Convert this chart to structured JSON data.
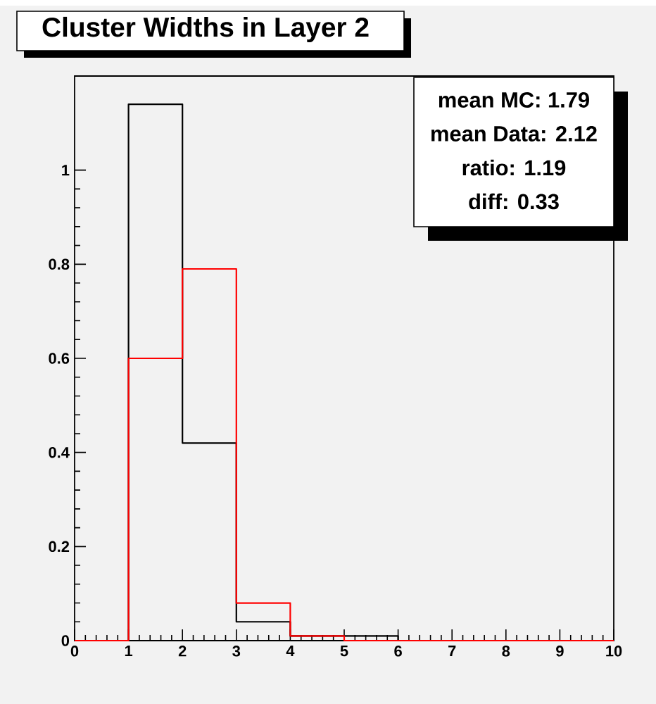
{
  "chart_data": {
    "type": "histogram",
    "title": "Cluster Widths in Layer 2",
    "bins": [
      0,
      1,
      2,
      3,
      4,
      5,
      6,
      7,
      8,
      9,
      10
    ],
    "series": [
      {
        "color": "#000000",
        "values": [
          0,
          1.14,
          0.42,
          0.04,
          0.01,
          0.01,
          0,
          0,
          0,
          0
        ]
      },
      {
        "color": "#ff0000",
        "values": [
          0,
          0.6,
          0.79,
          0.08,
          0.01,
          0,
          0,
          0,
          0,
          0
        ]
      }
    ],
    "xlim": [
      0,
      10
    ],
    "ylim": [
      0,
      1.2
    ],
    "xticks": [
      0,
      1,
      2,
      3,
      4,
      5,
      6,
      7,
      8,
      9,
      10
    ],
    "yticks": [
      0,
      0.2,
      0.4,
      0.6,
      0.8,
      1
    ],
    "annotations": [
      "mean MC: 1.79",
      "mean Data: 2.12",
      "ratio: 1.19",
      "diff: 0.33"
    ]
  }
}
